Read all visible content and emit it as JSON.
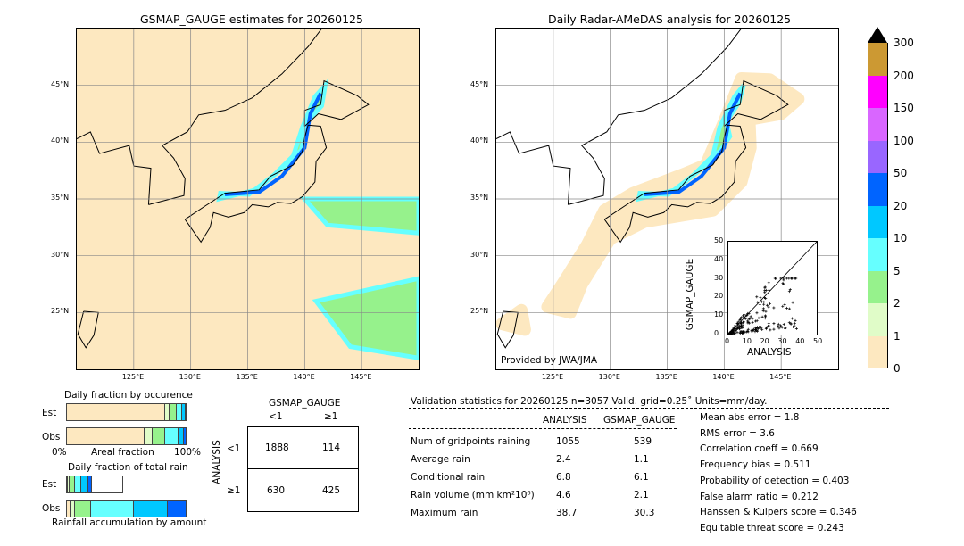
{
  "chart_data": [
    {
      "type": "heatmap",
      "title": "GSMAP_GAUGE estimates for 20260125",
      "lon_range": [
        120,
        150
      ],
      "lat_range": [
        20,
        50
      ],
      "lon_ticks": [
        "125°E",
        "130°E",
        "135°E",
        "140°E",
        "145°E"
      ],
      "lat_ticks": [
        "45°N",
        "40°N",
        "35°N",
        "30°N",
        "25°N"
      ]
    },
    {
      "type": "heatmap",
      "title": "Daily Radar-AMeDAS analysis for 20260125",
      "lon_range": [
        120,
        150
      ],
      "lat_range": [
        20,
        50
      ],
      "lon_ticks": [
        "125°E",
        "130°E",
        "135°E",
        "140°E",
        "145°E"
      ],
      "lat_ticks": [
        "45°N",
        "40°N",
        "35°N",
        "30°N",
        "25°N"
      ],
      "credit": "Provided by JWA/JMA"
    },
    {
      "type": "scatter",
      "xlabel": "ANALYSIS",
      "ylabel": "GSMAP_GAUGE",
      "xlim": [
        0,
        50
      ],
      "ylim": [
        0,
        50
      ],
      "ticks": [
        "0",
        "10",
        "20",
        "30",
        "40",
        "50"
      ]
    },
    {
      "type": "colorbar",
      "levels": [
        "0",
        "1",
        "2",
        "5",
        "10",
        "20",
        "50",
        "100",
        "150",
        "200",
        "300"
      ],
      "colors": [
        "#fde8c0",
        "#e0fcc8",
        "#96f28c",
        "#66ffff",
        "#00c8ff",
        "#0064ff",
        "#9966ff",
        "#d966ff",
        "#ff00ff",
        "#cc9933"
      ]
    },
    {
      "type": "bar",
      "title": "Daily fraction by occurence",
      "xlabel": "Areal fraction",
      "x_min_label": "0%",
      "x_max_label": "100%",
      "series": [
        {
          "name": "Est",
          "values": [
            82,
            4,
            6,
            4,
            3,
            1
          ]
        },
        {
          "name": "Obs",
          "values": [
            65,
            7,
            10,
            11,
            5,
            2
          ]
        }
      ]
    },
    {
      "type": "bar",
      "title": "Daily fraction of total rain",
      "xlabel": "Rainfall accumulation by amount",
      "series": [
        {
          "name": "Est",
          "values": [
            2,
            3,
            9,
            12,
            13,
            7
          ]
        },
        {
          "name": "Obs",
          "values": [
            3,
            4,
            13,
            36,
            28,
            16
          ]
        }
      ]
    },
    {
      "type": "table",
      "title": "GSMAP_GAUGE",
      "row_label": "ANALYSIS",
      "cols": [
        "<1",
        "≥1"
      ],
      "rows": [
        "<1",
        "≥1"
      ],
      "values": [
        [
          "1888",
          "114"
        ],
        [
          "630",
          "425"
        ]
      ]
    }
  ],
  "stats": {
    "header": "Validation statistics for 20260125  n=3057 Valid. grid=0.25˚ Units=mm/day.",
    "col1": "ANALYSIS",
    "col2": "GSMAP_GAUGE",
    "rows": [
      {
        "label": "Num of gridpoints raining",
        "a": "1055",
        "g": "539"
      },
      {
        "label": "Average rain",
        "a": "2.4",
        "g": "1.1"
      },
      {
        "label": "Conditional rain",
        "a": "6.8",
        "g": "6.1"
      },
      {
        "label": "Rain volume (mm km²10⁶)",
        "a": "4.6",
        "g": "2.1"
      },
      {
        "label": "Maximum rain",
        "a": "38.7",
        "g": "30.3"
      }
    ],
    "scores": [
      "Mean abs error =    1.8",
      "RMS error =    3.6",
      "Correlation coeff =  0.669",
      "Frequency bias =  0.511",
      "Probability of detection =  0.403",
      "False alarm ratio =  0.212",
      "Hanssen & Kuipers score =  0.346",
      "Equitable threat score =  0.243"
    ]
  }
}
